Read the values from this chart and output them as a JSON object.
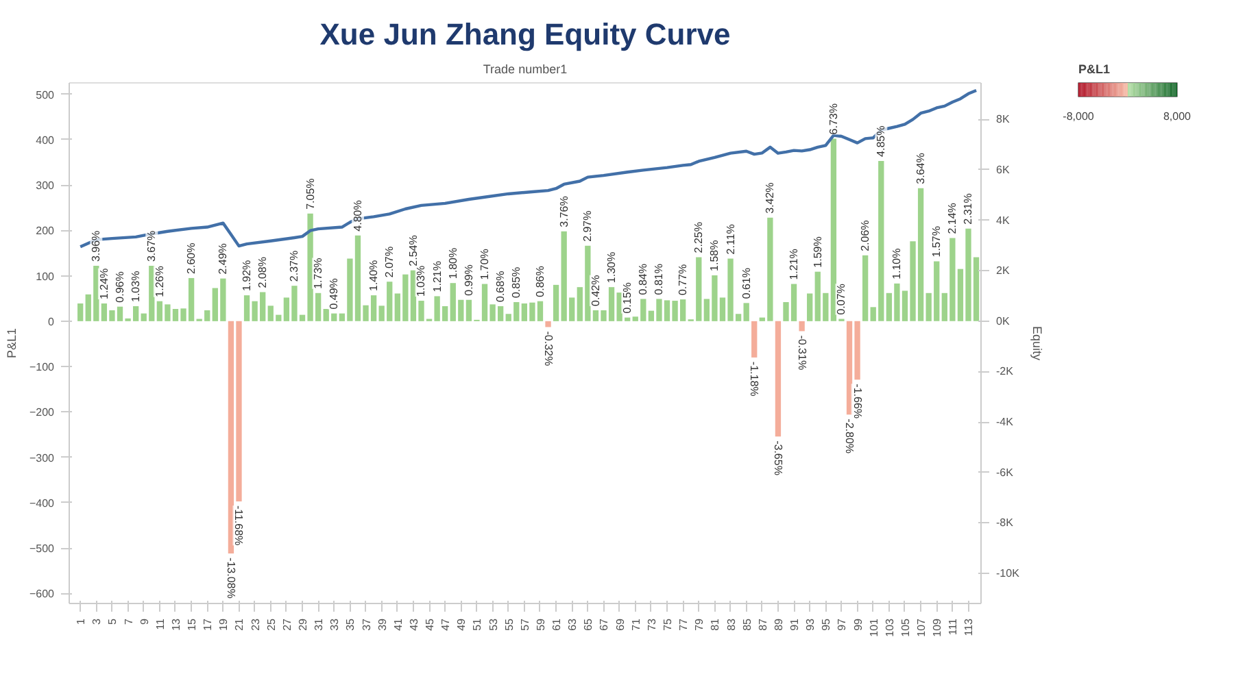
{
  "chart_data": {
    "type": "bar",
    "title": "Xue Jun Zhang Equity Curve",
    "xlabel": "Trade number1",
    "ylabel": "P&L1",
    "y2label": "Equity",
    "clabel": "P&L1",
    "clim": [
      -8000,
      8000
    ],
    "cticks": [
      {
        "value": -8000,
        "label": "-8,000"
      },
      {
        "value": 8000,
        "label": "8,000"
      }
    ],
    "x": [
      1,
      2,
      3,
      4,
      5,
      6,
      7,
      8,
      9,
      10,
      11,
      12,
      13,
      14,
      15,
      16,
      17,
      18,
      19,
      20,
      21,
      22,
      23,
      24,
      25,
      26,
      27,
      28,
      29,
      30,
      31,
      32,
      33,
      34,
      35,
      36,
      37,
      38,
      39,
      40,
      41,
      42,
      43,
      44,
      45,
      46,
      47,
      48,
      49,
      50,
      51,
      52,
      53,
      54,
      55,
      56,
      57,
      58,
      59,
      60,
      61,
      62,
      63,
      64,
      65,
      66,
      67,
      68,
      69,
      70,
      71,
      72,
      73,
      74,
      75,
      76,
      77,
      78,
      79,
      80,
      81,
      82,
      83,
      84,
      85,
      86,
      87,
      88,
      89,
      90,
      91,
      92,
      93,
      94,
      95,
      96,
      97,
      98,
      99,
      100,
      101,
      102,
      103,
      104,
      105,
      106,
      107,
      108,
      109,
      110,
      111,
      112,
      113,
      114
    ],
    "xlim": [
      -0.4,
      114.6
    ],
    "xticks": [
      1,
      3,
      5,
      7,
      9,
      11,
      13,
      15,
      17,
      19,
      21,
      23,
      25,
      27,
      29,
      31,
      33,
      35,
      37,
      39,
      41,
      43,
      45,
      47,
      49,
      51,
      53,
      55,
      57,
      59,
      61,
      63,
      65,
      67,
      69,
      71,
      73,
      75,
      77,
      79,
      81,
      83,
      85,
      87,
      89,
      91,
      93,
      95,
      97,
      99,
      101,
      103,
      105,
      107,
      109,
      111,
      113
    ],
    "ylim": [
      -622,
      525
    ],
    "yticks": [
      -600,
      -500,
      -400,
      -300,
      -200,
      -100,
      0,
      100,
      200,
      300,
      400,
      500
    ],
    "y2lim": [
      -11200,
      9450
    ],
    "y2ticks": [
      {
        "value": -10000,
        "label": "-10K"
      },
      {
        "value": -8000,
        "label": "-8K"
      },
      {
        "value": -6000,
        "label": "-6K"
      },
      {
        "value": -4000,
        "label": "-4K"
      },
      {
        "value": -2000,
        "label": "-2K"
      },
      {
        "value": 0,
        "label": "0K"
      },
      {
        "value": 2000,
        "label": "2K"
      },
      {
        "value": 4000,
        "label": "4K"
      },
      {
        "value": 6000,
        "label": "6K"
      },
      {
        "value": 8000,
        "label": "8K"
      }
    ],
    "grid": false,
    "annotations": [
      {
        "text": "3.96%",
        "x": 3,
        "y": 122
      },
      {
        "text": "1.24%",
        "x": 4,
        "y": 39
      },
      {
        "text": "0.96%",
        "x": 6,
        "y": 32
      },
      {
        "text": "1.03%",
        "x": 8,
        "y": 33
      },
      {
        "text": "3.67%",
        "x": 10,
        "y": 122
      },
      {
        "text": "1.26%",
        "x": 11,
        "y": 44
      },
      {
        "text": "2.60%",
        "x": 15,
        "y": 95
      },
      {
        "text": "2.49%",
        "x": 19,
        "y": 94
      },
      {
        "text": "-13.08%",
        "x": 20,
        "y": -512
      },
      {
        "text": "-11.68%",
        "x": 21,
        "y": -397
      },
      {
        "text": "1.92%",
        "x": 22,
        "y": 57
      },
      {
        "text": "2.08%",
        "x": 24,
        "y": 64
      },
      {
        "text": "2.37%",
        "x": 28,
        "y": 78
      },
      {
        "text": "7.05%",
        "x": 30,
        "y": 237
      },
      {
        "text": "1.73%",
        "x": 31,
        "y": 62
      },
      {
        "text": "0.49%",
        "x": 33,
        "y": 17
      },
      {
        "text": "4.80%",
        "x": 36,
        "y": 189
      },
      {
        "text": "1.40%",
        "x": 38,
        "y": 57
      },
      {
        "text": "2.07%",
        "x": 40,
        "y": 87
      },
      {
        "text": "2.54%",
        "x": 43,
        "y": 112
      },
      {
        "text": "1.03%",
        "x": 44,
        "y": 45
      },
      {
        "text": "1.21%",
        "x": 46,
        "y": 55
      },
      {
        "text": "1.80%",
        "x": 48,
        "y": 84
      },
      {
        "text": "0.99%",
        "x": 50,
        "y": 47
      },
      {
        "text": "1.70%",
        "x": 52,
        "y": 82
      },
      {
        "text": "0.68%",
        "x": 54,
        "y": 33
      },
      {
        "text": "0.85%",
        "x": 56,
        "y": 42
      },
      {
        "text": "0.86%",
        "x": 59,
        "y": 44
      },
      {
        "text": "-0.32%",
        "x": 60,
        "y": -13
      },
      {
        "text": "3.76%",
        "x": 62,
        "y": 198
      },
      {
        "text": "2.97%",
        "x": 65,
        "y": 166
      },
      {
        "text": "0.42%",
        "x": 66,
        "y": 24
      },
      {
        "text": "1.30%",
        "x": 68,
        "y": 75
      },
      {
        "text": "0.15%",
        "x": 70,
        "y": 8
      },
      {
        "text": "0.84%",
        "x": 72,
        "y": 49
      },
      {
        "text": "0.81%",
        "x": 74,
        "y": 49
      },
      {
        "text": "0.77%",
        "x": 77,
        "y": 48
      },
      {
        "text": "2.25%",
        "x": 79,
        "y": 141
      },
      {
        "text": "1.58%",
        "x": 81,
        "y": 101
      },
      {
        "text": "2.11%",
        "x": 83,
        "y": 138
      },
      {
        "text": "0.61%",
        "x": 85,
        "y": 40
      },
      {
        "text": "-1.18%",
        "x": 86,
        "y": -80
      },
      {
        "text": "3.42%",
        "x": 88,
        "y": 228
      },
      {
        "text": "-3.65%",
        "x": 89,
        "y": -254
      },
      {
        "text": "1.21%",
        "x": 91,
        "y": 82
      },
      {
        "text": "-0.31%",
        "x": 92,
        "y": -22
      },
      {
        "text": "1.59%",
        "x": 94,
        "y": 109
      },
      {
        "text": "6.73%",
        "x": 96,
        "y": 402
      },
      {
        "text": "0.07%",
        "x": 97,
        "y": 5
      },
      {
        "text": "-2.80%",
        "x": 98,
        "y": -206
      },
      {
        "text": "-1.66%",
        "x": 99,
        "y": -129
      },
      {
        "text": "2.06%",
        "x": 100,
        "y": 145
      },
      {
        "text": "4.85%",
        "x": 102,
        "y": 353
      },
      {
        "text": "1.10%",
        "x": 104,
        "y": 83
      },
      {
        "text": "3.64%",
        "x": 107,
        "y": 293
      },
      {
        "text": "1.57%",
        "x": 109,
        "y": 132
      },
      {
        "text": "2.14%",
        "x": 111,
        "y": 183
      },
      {
        "text": "2.31%",
        "x": 113,
        "y": 204
      }
    ],
    "series": [
      {
        "values": [
          39,
          59,
          122,
          39,
          24,
          32,
          6,
          33,
          17,
          122,
          44,
          37,
          27,
          28,
          95,
          5,
          24,
          73,
          94,
          -512,
          -397,
          57,
          44,
          64,
          34,
          14,
          52,
          78,
          14,
          237,
          62,
          27,
          17,
          17,
          138,
          189,
          35,
          57,
          34,
          87,
          61,
          103,
          112,
          45,
          5,
          55,
          33,
          84,
          47,
          47,
          3,
          82,
          37,
          33,
          16,
          42,
          39,
          41,
          44,
          -13,
          80,
          198,
          52,
          75,
          166,
          24,
          24,
          75,
          63,
          8,
          10,
          49,
          23,
          49,
          46,
          45,
          48,
          4,
          141,
          49,
          101,
          52,
          138,
          16,
          40,
          -80,
          8,
          228,
          -254,
          42,
          82,
          -22,
          61,
          109,
          62,
          402,
          5,
          -206,
          -129,
          145,
          31,
          353,
          62,
          83,
          67,
          176,
          293,
          62,
          132,
          62,
          183,
          115,
          204,
          141
        ],
        "colors": [
          "#9dd38b",
          "#9dd38b",
          "#9dd38b",
          "#9dd38b",
          "#9dd38b",
          "#9dd38b",
          "#9dd38b",
          "#9dd38b",
          "#9dd38b",
          "#9dd38b",
          "#9dd38b",
          "#9dd38b",
          "#9dd38b",
          "#9dd38b",
          "#9dd38b",
          "#9dd38b",
          "#9dd38b",
          "#9dd38b",
          "#9dd38b",
          "#f4ad9a",
          "#f4ad9a",
          "#9dd38b",
          "#9dd38b",
          "#9dd38b",
          "#9dd38b",
          "#9dd38b",
          "#9dd38b",
          "#9dd38b",
          "#9dd38b",
          "#9dd38b",
          "#9dd38b",
          "#9dd38b",
          "#9dd38b",
          "#9dd38b",
          "#9dd38b",
          "#9dd38b",
          "#9dd38b",
          "#9dd38b",
          "#9dd38b",
          "#9dd38b",
          "#9dd38b",
          "#9dd38b",
          "#9dd38b",
          "#9dd38b",
          "#9dd38b",
          "#9dd38b",
          "#9dd38b",
          "#9dd38b",
          "#9dd38b",
          "#9dd38b",
          "#9dd38b",
          "#9dd38b",
          "#9dd38b",
          "#9dd38b",
          "#9dd38b",
          "#9dd38b",
          "#9dd38b",
          "#9dd38b",
          "#9dd38b",
          "#f4ad9a",
          "#9dd38b",
          "#9dd38b",
          "#9dd38b",
          "#9dd38b",
          "#9dd38b",
          "#9dd38b",
          "#9dd38b",
          "#9dd38b",
          "#9dd38b",
          "#9dd38b",
          "#9dd38b",
          "#9dd38b",
          "#9dd38b",
          "#9dd38b",
          "#9dd38b",
          "#9dd38b",
          "#9dd38b",
          "#9dd38b",
          "#9dd38b",
          "#9dd38b",
          "#9dd38b",
          "#9dd38b",
          "#9dd38b",
          "#9dd38b",
          "#9dd38b",
          "#f4ad9a",
          "#9dd38b",
          "#9dd38b",
          "#f4ad9a",
          "#9dd38b",
          "#9dd38b",
          "#f4ad9a",
          "#9dd38b",
          "#9dd38b",
          "#9dd38b",
          "#9dd38b",
          "#9dd38b",
          "#f4ad9a",
          "#f4ad9a",
          "#9dd38b",
          "#9dd38b",
          "#9dd38b",
          "#9dd38b",
          "#9dd38b",
          "#9dd38b",
          "#9dd38b",
          "#9dd38b",
          "#9dd38b",
          "#9dd38b",
          "#9dd38b",
          "#9dd38b",
          "#9dd38b",
          "#9dd38b",
          "#9dd38b"
        ]
      },
      {
        "type": "line",
        "axis": "y2",
        "color": "#4270a8",
        "x": [
          1,
          3,
          5,
          8,
          10,
          12,
          15,
          17,
          19,
          20,
          21,
          22,
          25,
          28,
          29,
          30,
          31,
          34,
          35,
          36,
          38,
          40,
          42,
          44,
          47,
          50,
          52,
          55,
          58,
          60,
          61,
          62,
          64,
          65,
          67,
          70,
          72,
          75,
          77,
          78,
          79,
          81,
          83,
          85,
          86,
          87,
          88,
          89,
          90,
          91,
          92,
          93,
          94,
          95,
          96,
          97,
          98,
          99,
          100,
          101,
          102,
          103,
          104,
          105,
          106,
          107,
          108,
          109,
          110,
          111,
          112,
          113,
          114
        ],
        "values": [
          2950,
          3230,
          3280,
          3340,
          3460,
          3560,
          3680,
          3730,
          3890,
          3440,
          2980,
          3060,
          3180,
          3310,
          3360,
          3590,
          3660,
          3730,
          3920,
          4060,
          4140,
          4250,
          4450,
          4590,
          4670,
          4830,
          4920,
          5050,
          5130,
          5180,
          5260,
          5430,
          5550,
          5710,
          5780,
          5910,
          5990,
          6090,
          6180,
          6210,
          6340,
          6490,
          6660,
          6740,
          6620,
          6670,
          6900,
          6660,
          6710,
          6770,
          6750,
          6800,
          6900,
          6970,
          7370,
          7330,
          7200,
          7070,
          7240,
          7270,
          7580,
          7650,
          7720,
          7810,
          8000,
          8250,
          8330,
          8460,
          8530,
          8690,
          8820,
          9020,
          9150
        ]
      }
    ]
  }
}
